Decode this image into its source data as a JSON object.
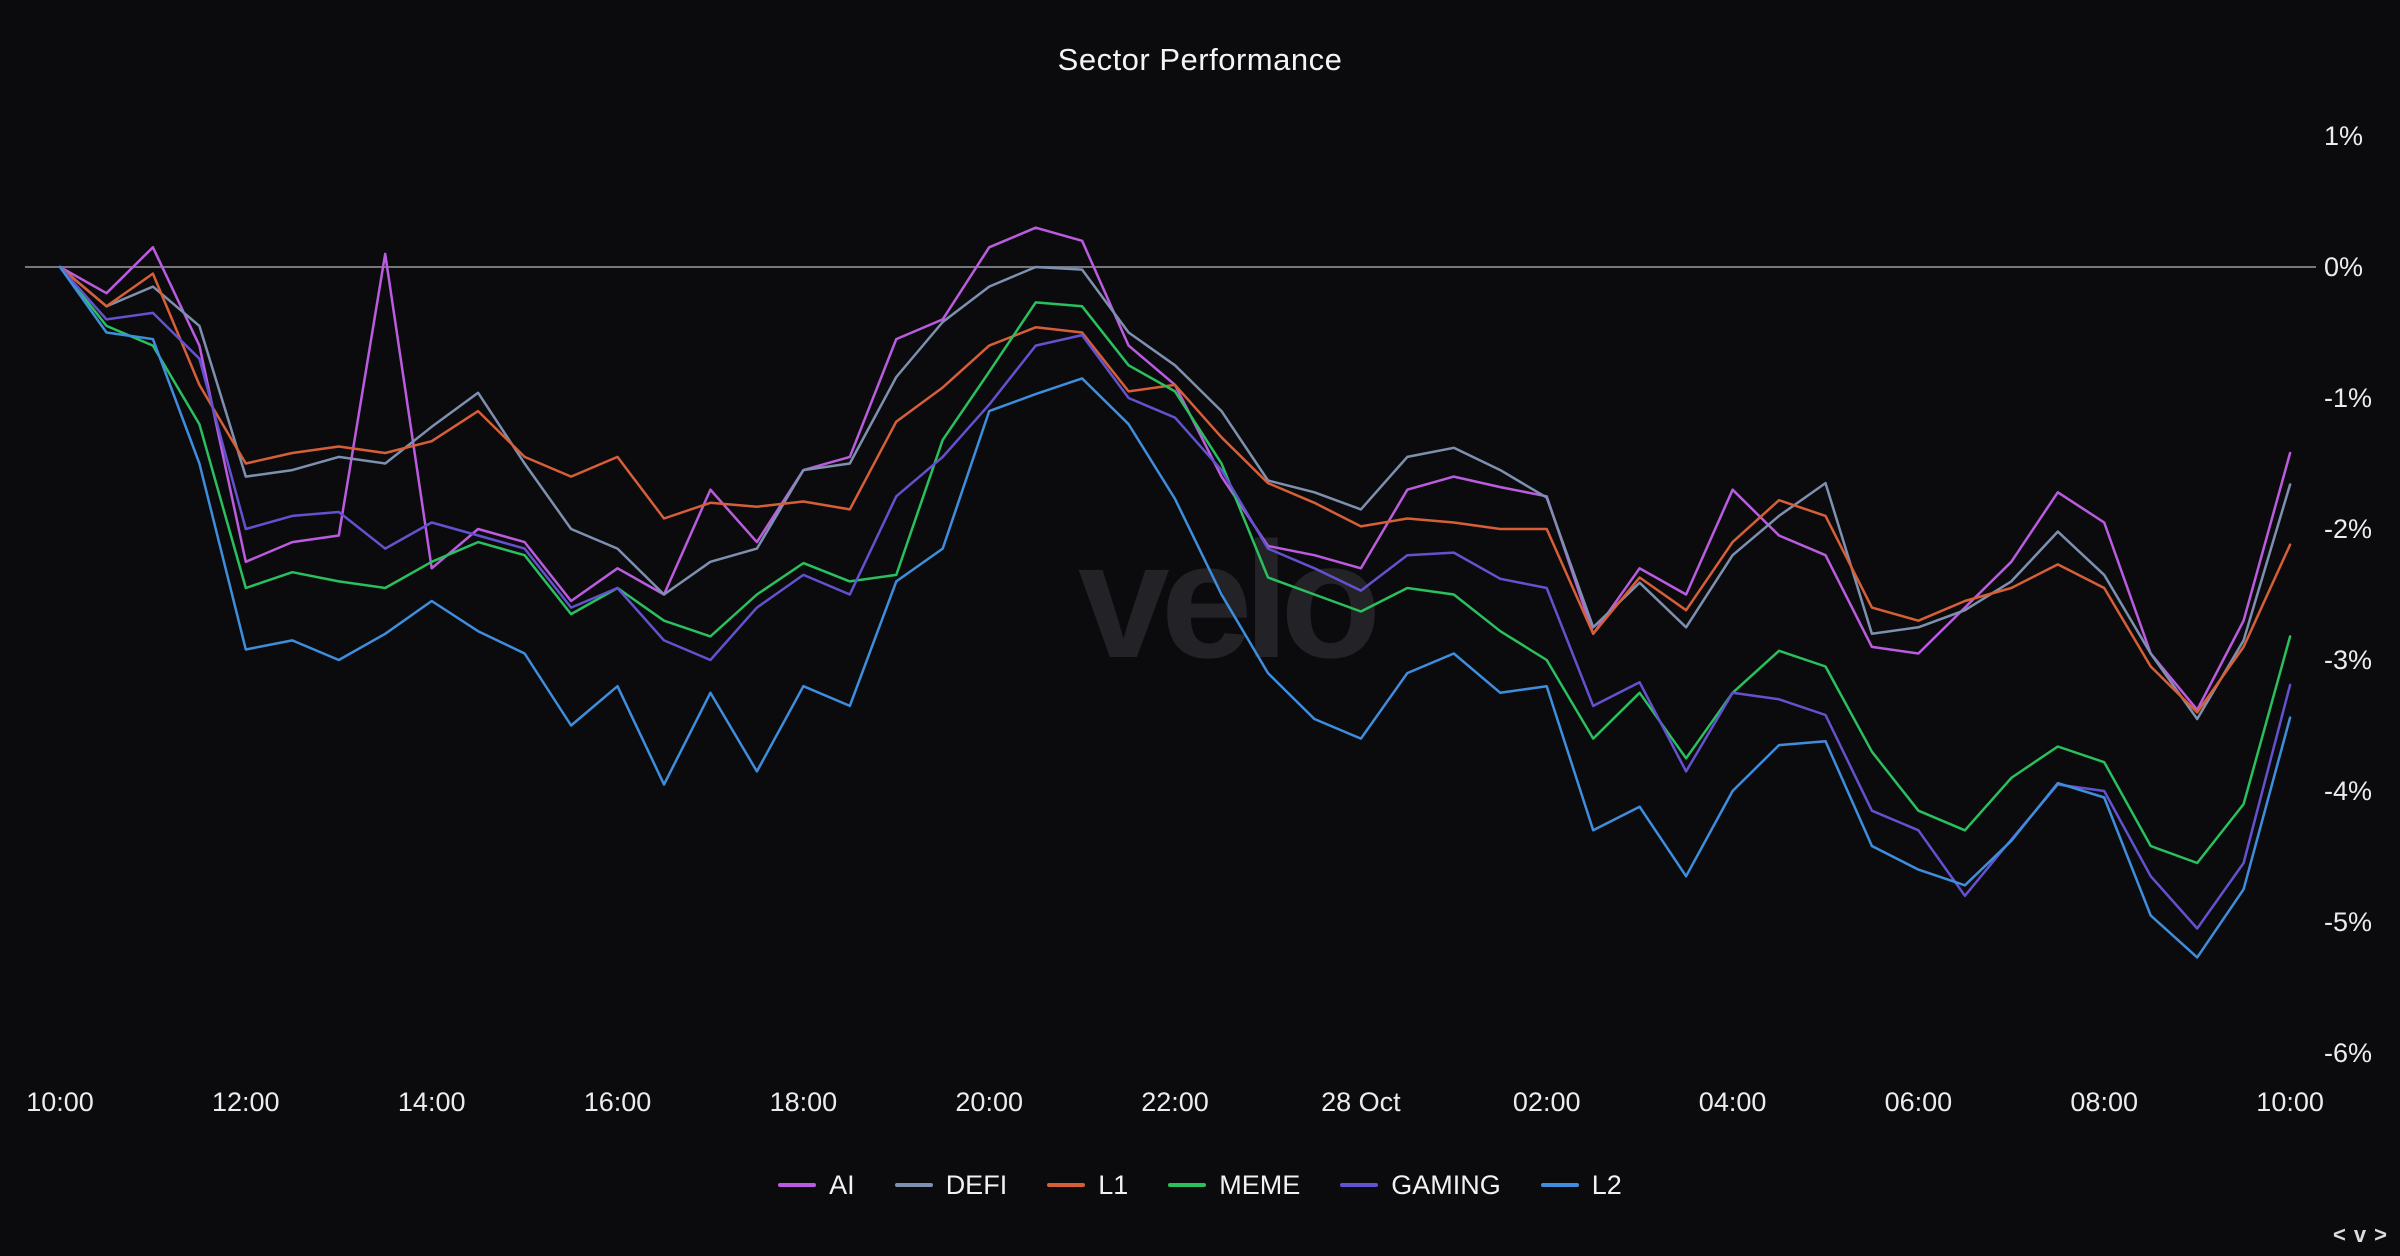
{
  "title": "Sector Performance",
  "watermark": "velo",
  "pager": {
    "prev": "<",
    "collapse": "v",
    "next": ">"
  },
  "colors": {
    "background": "#0b0b0d",
    "text": "#ececef",
    "zero_line": "#76767c",
    "watermark": "#232327"
  },
  "chart_data": {
    "type": "line",
    "title": "Sector Performance",
    "x_range": "27 Oct 10:00 to 28 Oct 10:00",
    "x_interval_minutes": 30,
    "x_tick_labels": [
      "10:00",
      "12:00",
      "14:00",
      "16:00",
      "18:00",
      "20:00",
      "22:00",
      "28 Oct",
      "02:00",
      "04:00",
      "06:00",
      "08:00",
      "10:00"
    ],
    "y_ticks": [
      {
        "label": "1%",
        "value": 1
      },
      {
        "label": "0%",
        "value": 0
      },
      {
        "label": "-1%",
        "value": -1
      },
      {
        "label": "-2%",
        "value": -2
      },
      {
        "label": "-3%",
        "value": -3
      },
      {
        "label": "-4%",
        "value": -4
      },
      {
        "label": "-5%",
        "value": -5
      },
      {
        "label": "-6%",
        "value": -6
      }
    ],
    "ylim": [
      -6.5,
      1.45
    ],
    "unit": "%",
    "grid": "zero line only",
    "legend_position": "bottom",
    "series": [
      {
        "name": "AI",
        "color": "#bb5ce0",
        "values": [
          0,
          -0.2,
          0.15,
          -0.6,
          -2.25,
          -2.1,
          -2.05,
          0.1,
          -2.3,
          -2.0,
          -2.1,
          -2.55,
          -2.3,
          -2.5,
          -1.7,
          -2.1,
          -1.55,
          -1.45,
          -0.55,
          -0.4,
          0.15,
          0.3,
          0.2,
          -0.6,
          -0.9,
          -1.6,
          -2.13,
          -2.2,
          -2.3,
          -1.7,
          -1.6,
          -1.68,
          -1.75,
          -2.8,
          -2.3,
          -2.5,
          -1.7,
          -2.05,
          -2.2,
          -2.9,
          -2.95,
          -2.6,
          -2.25,
          -1.72,
          -1.95,
          -2.95,
          -3.38,
          -2.7,
          -1.42
        ]
      },
      {
        "name": "DEFI",
        "color": "#7e90b0",
        "values": [
          0,
          -0.3,
          -0.15,
          -0.45,
          -1.6,
          -1.55,
          -1.45,
          -1.5,
          -1.22,
          -0.96,
          -1.5,
          -2.0,
          -2.15,
          -2.5,
          -2.25,
          -2.15,
          -1.55,
          -1.5,
          -0.84,
          -0.42,
          -0.15,
          0.0,
          -0.02,
          -0.5,
          -0.75,
          -1.1,
          -1.63,
          -1.72,
          -1.85,
          -1.45,
          -1.38,
          -1.55,
          -1.76,
          -2.75,
          -2.41,
          -2.75,
          -2.2,
          -1.9,
          -1.65,
          -2.8,
          -2.75,
          -2.62,
          -2.4,
          -2.02,
          -2.35,
          -2.95,
          -3.45,
          -2.85,
          -1.66
        ]
      },
      {
        "name": "L1",
        "color": "#d75f38",
        "values": [
          0,
          -0.3,
          -0.05,
          -0.9,
          -1.5,
          -1.42,
          -1.37,
          -1.42,
          -1.33,
          -1.1,
          -1.45,
          -1.6,
          -1.45,
          -1.92,
          -1.8,
          -1.83,
          -1.79,
          -1.85,
          -1.18,
          -0.92,
          -0.6,
          -0.46,
          -0.5,
          -0.95,
          -0.9,
          -1.3,
          -1.65,
          -1.8,
          -1.98,
          -1.92,
          -1.95,
          -2.0,
          -2.0,
          -2.8,
          -2.37,
          -2.62,
          -2.1,
          -1.78,
          -1.9,
          -2.6,
          -2.7,
          -2.55,
          -2.45,
          -2.27,
          -2.45,
          -3.05,
          -3.4,
          -2.9,
          -2.12
        ]
      },
      {
        "name": "MEME",
        "color": "#29c05d",
        "values": [
          0,
          -0.45,
          -0.6,
          -1.2,
          -2.45,
          -2.33,
          -2.4,
          -2.45,
          -2.25,
          -2.1,
          -2.2,
          -2.65,
          -2.45,
          -2.7,
          -2.82,
          -2.5,
          -2.26,
          -2.4,
          -2.35,
          -1.32,
          -0.8,
          -0.27,
          -0.3,
          -0.75,
          -0.95,
          -1.5,
          -2.37,
          -2.5,
          -2.63,
          -2.45,
          -2.5,
          -2.78,
          -3.0,
          -3.6,
          -3.25,
          -3.75,
          -3.25,
          -2.93,
          -3.05,
          -3.7,
          -4.15,
          -4.3,
          -3.9,
          -3.66,
          -3.78,
          -4.42,
          -4.55,
          -4.1,
          -2.82
        ]
      },
      {
        "name": "GAMING",
        "color": "#6352cf",
        "values": [
          0,
          -0.4,
          -0.35,
          -0.7,
          -2.0,
          -1.9,
          -1.87,
          -2.15,
          -1.95,
          -2.05,
          -2.15,
          -2.6,
          -2.45,
          -2.85,
          -3.0,
          -2.6,
          -2.35,
          -2.5,
          -1.75,
          -1.45,
          -1.05,
          -0.6,
          -0.52,
          -1.0,
          -1.15,
          -1.55,
          -2.15,
          -2.3,
          -2.47,
          -2.2,
          -2.18,
          -2.38,
          -2.45,
          -3.35,
          -3.17,
          -3.85,
          -3.25,
          -3.3,
          -3.42,
          -4.15,
          -4.3,
          -4.8,
          -4.37,
          -3.95,
          -4.0,
          -4.65,
          -5.05,
          -4.55,
          -3.19
        ]
      },
      {
        "name": "L2",
        "color": "#3e8edd",
        "values": [
          0,
          -0.5,
          -0.55,
          -1.5,
          -2.92,
          -2.85,
          -3.0,
          -2.8,
          -2.55,
          -2.78,
          -2.95,
          -3.5,
          -3.2,
          -3.95,
          -3.25,
          -3.85,
          -3.2,
          -3.35,
          -2.4,
          -2.15,
          -1.1,
          -0.97,
          -0.85,
          -1.2,
          -1.77,
          -2.5,
          -3.1,
          -3.45,
          -3.6,
          -3.1,
          -2.95,
          -3.25,
          -3.2,
          -4.3,
          -4.12,
          -4.65,
          -4.0,
          -3.65,
          -3.62,
          -4.42,
          -4.6,
          -4.72,
          -4.38,
          -3.94,
          -4.05,
          -4.95,
          -5.27,
          -4.75,
          -3.44
        ]
      }
    ]
  }
}
